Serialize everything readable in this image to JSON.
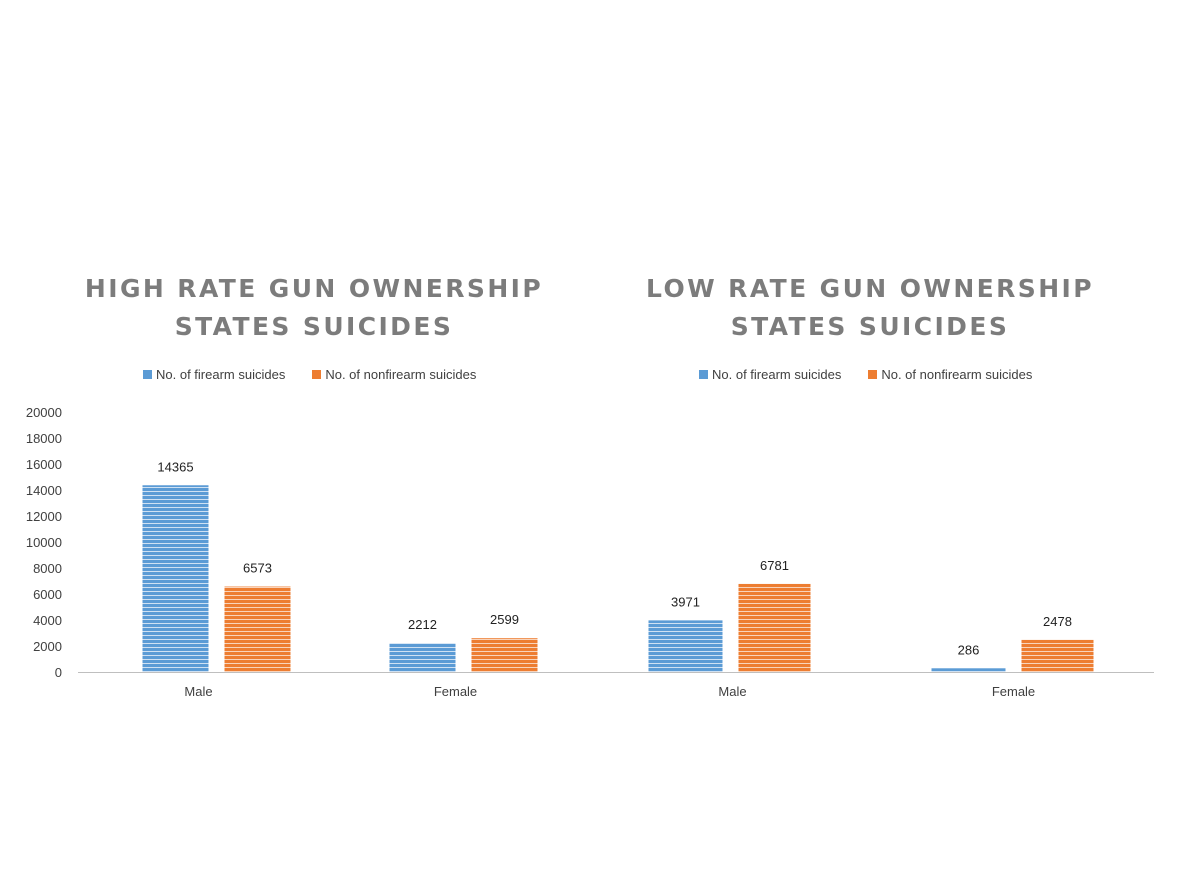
{
  "colors": {
    "firearm": "#5b9bd5",
    "nonfirearm": "#ed7d31",
    "title": "#7c7c7c",
    "text": "#404040",
    "axis": "#bfbfbf",
    "background": "#ffffff"
  },
  "legend_labels": [
    "No. of firearm suicides",
    "No. of nonfirearm suicides"
  ],
  "chart_data": [
    {
      "type": "bar",
      "title_lines": [
        "HIGH RATE GUN OWNERSHIP",
        "STATES SUICIDES"
      ],
      "categories": [
        "Male",
        "Female"
      ],
      "series": [
        {
          "name": "No. of firearm suicides",
          "values": [
            14365,
            2212
          ]
        },
        {
          "name": "No. of nonfirearm suicides",
          "values": [
            6573,
            2599
          ]
        }
      ],
      "ylim": [
        0,
        20000
      ],
      "yticks": [
        "0",
        "2000",
        "4000",
        "6000",
        "8000",
        "10000",
        "12000",
        "14000",
        "16000",
        "18000",
        "20000"
      ],
      "data_labels": true,
      "legend_position": "top",
      "grid": false
    },
    {
      "type": "bar",
      "title_lines": [
        "LOW RATE GUN OWNERSHIP",
        "STATES SUICIDES"
      ],
      "categories": [
        "Male",
        "Female"
      ],
      "series": [
        {
          "name": "No. of firearm suicides",
          "values": [
            3971,
            286
          ]
        },
        {
          "name": "No. of nonfirearm suicides",
          "values": [
            6781,
            2478
          ]
        }
      ],
      "ylim": [
        0,
        20000
      ],
      "data_labels": true,
      "legend_position": "top",
      "grid": false
    }
  ]
}
